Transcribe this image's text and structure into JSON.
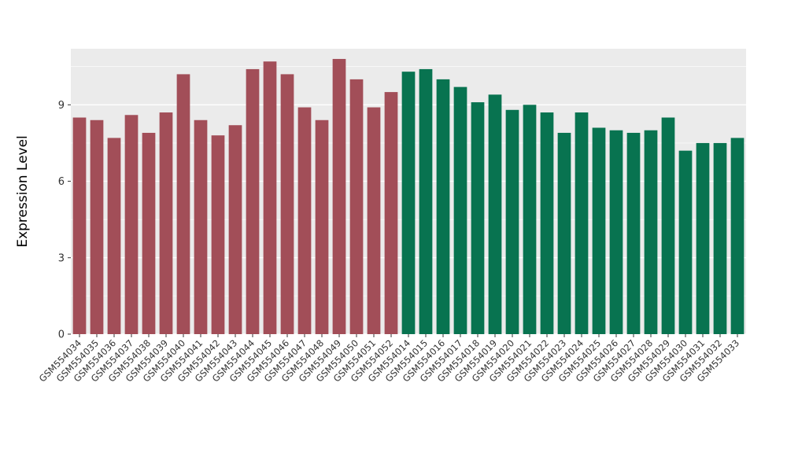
{
  "chart_data": {
    "type": "bar",
    "title": "",
    "xlabel": "",
    "ylabel": "Expression Level",
    "ylim": [
      0,
      11.2
    ],
    "yticks": [
      0,
      3,
      6,
      9
    ],
    "grid": true,
    "legend": "none",
    "panel_bg": "#EBEBEB",
    "grid_major_color": "#FFFFFF",
    "grid_minor_color": "#FFFFFF",
    "tick_color": "#333333",
    "tick_label_color": "#333333",
    "axis_title_color": "#000000",
    "categories": [
      "GSM554034",
      "GSM554035",
      "GSM554036",
      "GSM554037",
      "GSM554038",
      "GSM554039",
      "GSM554040",
      "GSM554041",
      "GSM554042",
      "GSM554043",
      "GSM554044",
      "GSM554045",
      "GSM554046",
      "GSM554047",
      "GSM554048",
      "GSM554049",
      "GSM554050",
      "GSM554051",
      "GSM554052",
      "GSM554014",
      "GSM554015",
      "GSM554016",
      "GSM554017",
      "GSM554018",
      "GSM554019",
      "GSM554020",
      "GSM554021",
      "GSM554022",
      "GSM554023",
      "GSM554024",
      "GSM554025",
      "GSM554026",
      "GSM554027",
      "GSM554028",
      "GSM554029",
      "GSM554030",
      "GSM554031",
      "GSM554032",
      "GSM554033"
    ],
    "values": [
      8.5,
      8.4,
      7.7,
      8.6,
      7.9,
      8.7,
      10.2,
      8.4,
      7.8,
      8.2,
      10.4,
      10.7,
      10.2,
      8.9,
      8.4,
      10.8,
      10.0,
      8.9,
      9.5,
      10.3,
      10.4,
      10.0,
      9.7,
      9.1,
      9.4,
      8.8,
      9.0,
      8.7,
      7.9,
      8.7,
      8.1,
      8.0,
      7.9,
      8.0,
      8.5,
      7.2,
      7.5,
      7.5,
      7.7
    ],
    "groups": [
      "A",
      "A",
      "A",
      "A",
      "A",
      "A",
      "A",
      "A",
      "A",
      "A",
      "A",
      "A",
      "A",
      "A",
      "A",
      "A",
      "A",
      "A",
      "A",
      "B",
      "B",
      "B",
      "B",
      "B",
      "B",
      "B",
      "B",
      "B",
      "B",
      "B",
      "B",
      "B",
      "B",
      "B",
      "B",
      "B",
      "B",
      "B",
      "B"
    ],
    "group_colors": {
      "A": "#A24E58",
      "B": "#087350"
    }
  }
}
